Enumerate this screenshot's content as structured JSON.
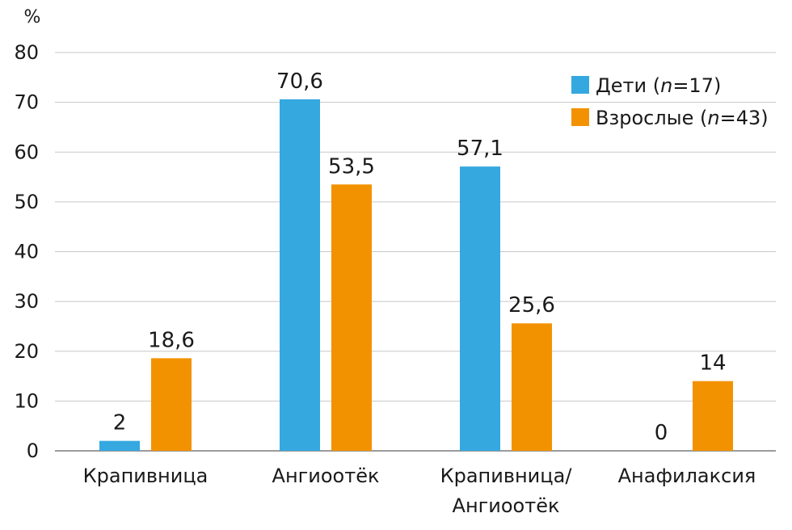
{
  "chart_data": {
    "type": "bar",
    "unit_label": "%",
    "ylim": [
      0,
      80
    ],
    "yticks": [
      0,
      10,
      20,
      30,
      40,
      50,
      60,
      70,
      80
    ],
    "grid": true,
    "legend_position": "top-right",
    "categories": [
      [
        "Крапивница"
      ],
      [
        "Ангиоотёк"
      ],
      [
        "Крапивница/",
        "Ангиоотёк"
      ],
      [
        "Анафилаксия"
      ]
    ],
    "series": [
      {
        "name_parts": [
          "Дети (",
          "n",
          "=17)"
        ],
        "color": "#35a8e0",
        "values": [
          2,
          70.6,
          57.1,
          0
        ],
        "labels": [
          "2",
          "70,6",
          "57,1",
          "0"
        ]
      },
      {
        "name_parts": [
          "Взрослые (",
          "n",
          "=43)"
        ],
        "color": "#f39200",
        "values": [
          18.6,
          53.5,
          25.6,
          14
        ],
        "labels": [
          "18,6",
          "53,5",
          "25,6",
          "14"
        ]
      }
    ]
  }
}
